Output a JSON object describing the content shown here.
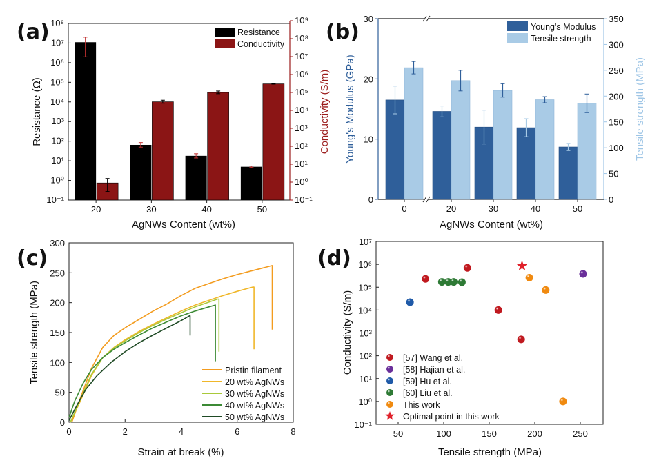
{
  "figure": {
    "panels": [
      "(a)",
      "(b)",
      "(c)",
      "(d)"
    ]
  },
  "colors": {
    "resistance": "#000000",
    "conductivity": "#8b1515",
    "conductivity_axis": "#9b1b1b",
    "youngs_modulus": "#2f5f9a",
    "tensile_strength_bar": "#a9cbe6",
    "tensile_axis": "#9fc6e6",
    "pristine": "#f39c1f",
    "wt20": "#f0b72a",
    "wt30": "#a9c93a",
    "wt40": "#3c8a35",
    "wt50": "#1f4a25",
    "wang": "#c0191f",
    "hajian": "#6a2f9a",
    "hu": "#1f5aa8",
    "liu": "#2e7a35",
    "this_work": "#f08a10",
    "optimal": "#e0202a"
  },
  "chart_data": [
    {
      "panel": "(a)",
      "type": "bar",
      "categories": [
        "20",
        "30",
        "40",
        "50"
      ],
      "xlabel": "AgNWs Content (wt%)",
      "ylabel": "Resistance (Ω)",
      "y2label": "Conductivity (S/m)",
      "yscale": "log",
      "ylim": [
        0.1,
        100000000
      ],
      "y2lim": [
        0.1,
        1000000000
      ],
      "yticks": [
        "10⁻¹",
        "10⁰",
        "10¹",
        "10²",
        "10³",
        "10⁴",
        "10⁵",
        "10⁶",
        "10⁷",
        "10⁸"
      ],
      "y2ticks": [
        "10⁻¹",
        "10⁰",
        "10¹",
        "10²",
        "10³",
        "10⁴",
        "10⁵",
        "10⁶",
        "10⁷",
        "10⁸",
        "10⁹"
      ],
      "legend": [
        "Resistance",
        "Conductivity"
      ],
      "legend_position": "top-right",
      "series": [
        {
          "name": "Resistance",
          "axis": "left",
          "values": [
            11000000,
            65,
            18,
            5
          ],
          "err_low": [
            2000000,
            50,
            14,
            4.6
          ],
          "err_high": [
            20000000,
            85,
            23,
            5.4
          ]
        },
        {
          "name": "Conductivity",
          "axis": "right",
          "values": [
            0.9,
            30000,
            100000,
            300000
          ],
          "err_low": [
            0.3,
            25000,
            85000,
            290000
          ],
          "err_high": [
            1.6,
            37000,
            120000,
            310000
          ]
        }
      ]
    },
    {
      "panel": "(b)",
      "type": "bar",
      "categories": [
        "0",
        "20",
        "30",
        "40",
        "50"
      ],
      "xlabel": "AgNWs Content (wt%)",
      "ylabel": "Young's Modulus (GPa)",
      "y2label": "Tensile strength (MPa)",
      "ylim": [
        0,
        30
      ],
      "y2lim": [
        0,
        350
      ],
      "yticks": [
        "0",
        "10",
        "20",
        "30"
      ],
      "y2ticks": [
        "0",
        "50",
        "100",
        "150",
        "200",
        "250",
        "300",
        "350"
      ],
      "axis_break": "between 0 and 20",
      "legend": [
        "Young's Modulus",
        "Tensile strength"
      ],
      "legend_position": "top-right",
      "series": [
        {
          "name": "Young's Modulus",
          "axis": "left",
          "values": [
            16.5,
            14.6,
            12.0,
            11.9,
            8.7
          ],
          "err": [
            2.3,
            0.9,
            2.8,
            1.5,
            0.6
          ]
        },
        {
          "name": "Tensile strength",
          "axis": "right",
          "values": [
            255,
            230,
            211,
            193,
            186
          ],
          "err": [
            12,
            20,
            13,
            6,
            18
          ]
        }
      ]
    },
    {
      "panel": "(c)",
      "type": "line",
      "xlabel": "Strain at break (%)",
      "ylabel": "Tensile strength (MPa)",
      "xlim": [
        0,
        8
      ],
      "ylim": [
        0,
        300
      ],
      "xticks": [
        "0",
        "2",
        "4",
        "6",
        "8"
      ],
      "yticks": [
        "0",
        "50",
        "100",
        "150",
        "200",
        "250",
        "300"
      ],
      "legend_position": "bottom-right",
      "series": [
        {
          "name": "Pristin filament",
          "x": [
            0.1,
            0.4,
            0.8,
            1.2,
            1.6,
            2.0,
            2.5,
            3.0,
            3.5,
            4.0,
            4.5,
            5.0,
            5.5,
            6.0,
            6.5,
            7.0,
            7.25,
            7.25
          ],
          "y": [
            0,
            40,
            90,
            125,
            145,
            158,
            172,
            186,
            198,
            212,
            224,
            232,
            240,
            247,
            253,
            259,
            262,
            155
          ]
        },
        {
          "name": "20 wt% AgNWs",
          "x": [
            0.05,
            0.4,
            0.8,
            1.2,
            1.6,
            2.0,
            2.5,
            3.0,
            3.5,
            4.0,
            4.5,
            5.0,
            5.5,
            6.0,
            6.55,
            6.6,
            6.6
          ],
          "y": [
            0,
            35,
            78,
            108,
            125,
            138,
            152,
            164,
            175,
            186,
            196,
            204,
            212,
            219,
            226,
            226,
            122
          ]
        },
        {
          "name": "30 wt% AgNWs",
          "x": [
            0.05,
            0.4,
            0.8,
            1.2,
            1.6,
            2.0,
            2.5,
            3.0,
            3.5,
            4.0,
            4.5,
            5.0,
            5.3,
            5.35,
            5.35
          ],
          "y": [
            0,
            38,
            80,
            108,
            124,
            136,
            150,
            162,
            173,
            183,
            193,
            201,
            206,
            206,
            118
          ]
        },
        {
          "name": "40 wt% AgNWs",
          "x": [
            0.0,
            0.2,
            0.5,
            0.8,
            1.2,
            1.6,
            2.0,
            2.5,
            3.0,
            3.5,
            4.0,
            4.5,
            5.0,
            5.22,
            5.22
          ],
          "y": [
            8,
            35,
            65,
            88,
            108,
            122,
            133,
            146,
            158,
            168,
            178,
            186,
            193,
            196,
            102
          ]
        },
        {
          "name": "50 wt% AgNWs",
          "x": [
            0.0,
            0.3,
            0.6,
            1.0,
            1.5,
            2.0,
            2.5,
            3.0,
            3.5,
            4.0,
            4.3,
            4.32,
            4.32
          ],
          "y": [
            3,
            30,
            55,
            78,
            100,
            118,
            133,
            146,
            158,
            170,
            178,
            178,
            145
          ]
        }
      ]
    },
    {
      "panel": "(d)",
      "type": "scatter",
      "xlabel": "Tensile strength (MPa)",
      "ylabel": "Conductivity (S/m)",
      "xlim": [
        25,
        275
      ],
      "ylim": [
        0.1,
        10000000
      ],
      "yscale": "log",
      "xticks": [
        "50",
        "100",
        "150",
        "200",
        "250"
      ],
      "yticks": [
        "10⁻¹",
        "10⁰",
        "10¹",
        "10²",
        "10³",
        "10⁴",
        "10⁵",
        "10⁶",
        "10⁷"
      ],
      "legend_position": "bottom-left",
      "series": [
        {
          "name": "[57] Wang et al.",
          "marker": "sphere",
          "x": [
            80,
            126,
            160,
            185
          ],
          "y": [
            230000,
            700000,
            10000,
            520
          ]
        },
        {
          "name": "[58] Hajian et al.",
          "marker": "sphere",
          "x": [
            253
          ],
          "y": [
            380000
          ]
        },
        {
          "name": "[59] Hu et al.",
          "marker": "sphere",
          "x": [
            63
          ],
          "y": [
            22000
          ]
        },
        {
          "name": "[60] Liu et al.",
          "marker": "sphere",
          "x": [
            98,
            105,
            111,
            120
          ],
          "y": [
            170000,
            170000,
            170000,
            165000
          ]
        },
        {
          "name": "This work",
          "marker": "sphere",
          "x": [
            194,
            212,
            231
          ],
          "y": [
            260000,
            75000,
            1
          ]
        },
        {
          "name": "Optimal point in this work",
          "marker": "star",
          "x": [
            186
          ],
          "y": [
            850000
          ]
        }
      ]
    }
  ]
}
